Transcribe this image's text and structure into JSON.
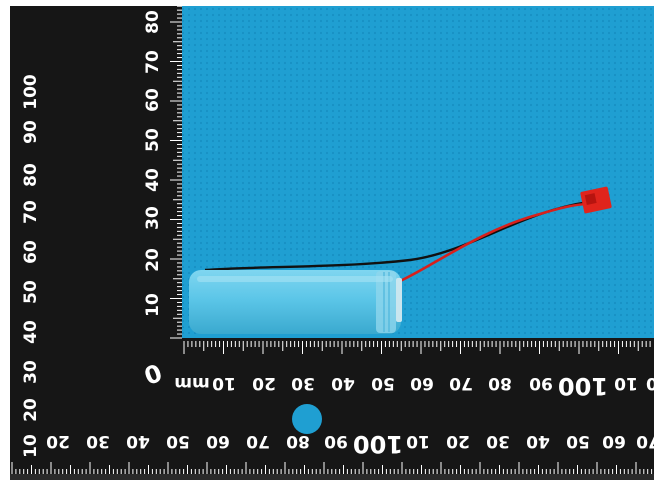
{
  "photo": {
    "subject": "cylindrical battery cell with red connector",
    "colors": {
      "backdrop": "#1f9fd2",
      "ruler": "#161616",
      "ruler_marking": "#ffffff",
      "battery": "#5cc6e8",
      "battery_cap": "#8fd6ec",
      "wire_red": "#d8201c",
      "wire_black": "#111111",
      "connector": "#e0241c"
    }
  },
  "ruler_vertical": {
    "labels": [
      "10",
      "20",
      "30",
      "40",
      "50",
      "60",
      "70",
      "80"
    ]
  },
  "ruler_horizontal": {
    "zero": "0",
    "unit": "mm",
    "labels": [
      "10",
      "20",
      "30",
      "40",
      "50",
      "60",
      "70",
      "80",
      "90",
      "100",
      "10",
      "0"
    ]
  },
  "ruler_left": {
    "labels": [
      "100",
      "90",
      "80",
      "70",
      "60",
      "50",
      "40",
      "30",
      "20",
      "10"
    ]
  },
  "ruler_bottom": {
    "labels": [
      "20",
      "30",
      "40",
      "50",
      "60",
      "70",
      "80",
      "90",
      "100",
      "10",
      "20",
      "30",
      "40",
      "50",
      "60",
      "70"
    ]
  }
}
